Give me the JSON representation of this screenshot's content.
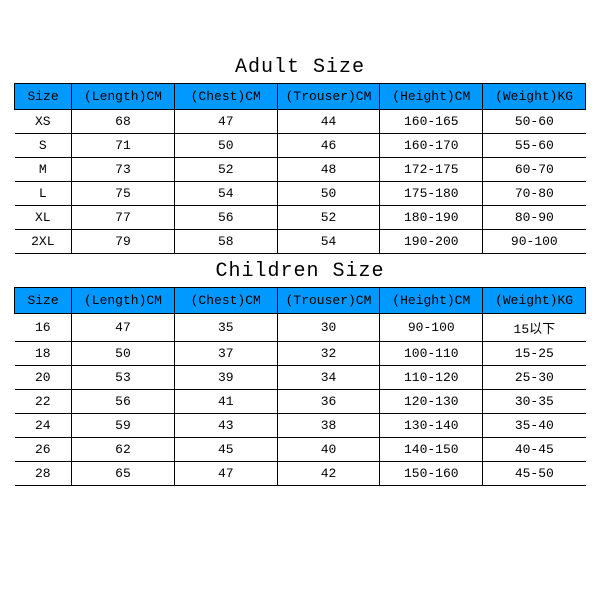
{
  "adult": {
    "title": "Adult Size",
    "columns": [
      "Size",
      "(Length)CM",
      "(Chest)CM",
      "(Trouser)CM",
      "(Height)CM",
      "(Weight)KG"
    ],
    "rows": [
      [
        "XS",
        "68",
        "47",
        "44",
        "160-165",
        "50-60"
      ],
      [
        "S",
        "71",
        "50",
        "46",
        "160-170",
        "55-60"
      ],
      [
        "M",
        "73",
        "52",
        "48",
        "172-175",
        "60-70"
      ],
      [
        "L",
        "75",
        "54",
        "50",
        "175-180",
        "70-80"
      ],
      [
        "XL",
        "77",
        "56",
        "52",
        "180-190",
        "80-90"
      ],
      [
        "2XL",
        "79",
        "58",
        "54",
        "190-200",
        "90-100"
      ]
    ],
    "header_bg": "#0099ff",
    "border_color": "#000000",
    "text_color": "#000000",
    "header_fontsize": 13,
    "cell_fontsize": 13
  },
  "children": {
    "title": "Children Size",
    "columns": [
      "Size",
      "(Length)CM",
      "(Chest)CM",
      "(Trouser)CM",
      "(Height)CM",
      "(Weight)KG"
    ],
    "rows": [
      [
        "16",
        "47",
        "35",
        "30",
        "90-100",
        "15以下"
      ],
      [
        "18",
        "50",
        "37",
        "32",
        "100-110",
        "15-25"
      ],
      [
        "20",
        "53",
        "39",
        "34",
        "110-120",
        "25-30"
      ],
      [
        "22",
        "56",
        "41",
        "36",
        "120-130",
        "30-35"
      ],
      [
        "24",
        "59",
        "43",
        "38",
        "130-140",
        "35-40"
      ],
      [
        "26",
        "62",
        "45",
        "40",
        "140-150",
        "40-45"
      ],
      [
        "28",
        "65",
        "47",
        "42",
        "150-160",
        "45-50"
      ]
    ],
    "header_bg": "#0099ff",
    "border_color": "#000000",
    "text_color": "#000000",
    "header_fontsize": 13,
    "cell_fontsize": 13
  },
  "layout": {
    "background": "#ffffff",
    "col_widths_pct": [
      10,
      18,
      18,
      18,
      18,
      18
    ],
    "title_fontsize": 20
  }
}
